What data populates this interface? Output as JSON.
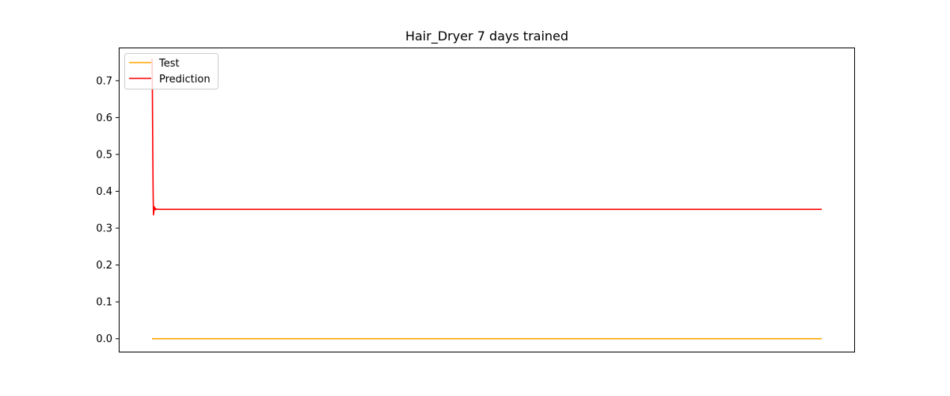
{
  "chart_data": {
    "type": "line",
    "title": "Hair_Dryer 7 days trained",
    "xlabel": "",
    "ylabel": "",
    "xlim": [
      0,
      1000
    ],
    "ylim": [
      -0.035,
      0.79
    ],
    "y_ticks": [
      0.0,
      0.1,
      0.2,
      0.3,
      0.4,
      0.5,
      0.6,
      0.7
    ],
    "y_tick_labels": [
      "0.0",
      "0.1",
      "0.2",
      "0.3",
      "0.4",
      "0.5",
      "0.6",
      "0.7"
    ],
    "x_ticks_shown": false,
    "grid": false,
    "legend_position": "top-left",
    "series": [
      {
        "name": "Test",
        "color": "#ffa500",
        "x": [
          0,
          909
        ],
        "y": [
          0.0,
          0.0
        ]
      },
      {
        "name": "Prediction",
        "color": "#ff0000",
        "x": [
          0,
          0.5,
          1,
          1.5,
          2,
          2.5,
          3,
          3.5,
          4,
          5,
          6,
          8,
          12,
          20,
          909
        ],
        "y": [
          0.76,
          0.68,
          0.52,
          0.4,
          0.336,
          0.344,
          0.358,
          0.35,
          0.355,
          0.35,
          0.352,
          0.351,
          0.351,
          0.351,
          0.351
        ]
      }
    ]
  }
}
